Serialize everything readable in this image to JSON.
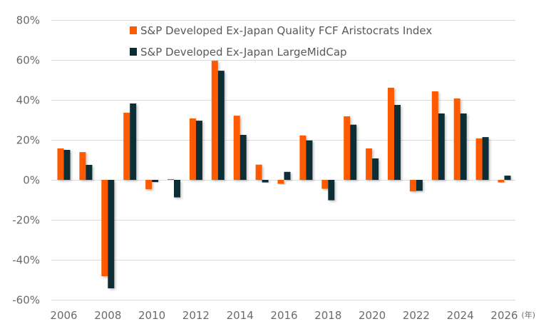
{
  "chart_data": {
    "type": "bar",
    "title": "",
    "xlabel": "",
    "ylabel": "",
    "x_unit_label": "(年)",
    "ylim": [
      -60,
      80
    ],
    "yticks": [
      80,
      60,
      40,
      20,
      0,
      -20,
      -40,
      -60
    ],
    "ytick_labels": [
      "80%",
      "60%",
      "40%",
      "20%",
      "0%",
      "-20%",
      "-40%",
      "-60%"
    ],
    "grid": true,
    "legend_position": "top-center",
    "categories": [
      2006,
      2007,
      2008,
      2009,
      2010,
      2011,
      2012,
      2013,
      2014,
      2015,
      2016,
      2017,
      2018,
      2019,
      2020,
      2021,
      2022,
      2023,
      2024,
      2025,
      2026
    ],
    "xtick_labels": [
      "2006",
      "2008",
      "2010",
      "2012",
      "2014",
      "2016",
      "2018",
      "2020",
      "2022",
      "2024",
      "2026"
    ],
    "series": [
      {
        "name": "S&P Developed Ex-Japan Quality FCF Aristocrats Index",
        "color": "#FF5A00",
        "values": [
          15.7,
          13.9,
          -48.2,
          33.6,
          -4.7,
          0.4,
          30.7,
          59.6,
          32.1,
          7.6,
          -2.0,
          22.2,
          -4.5,
          31.8,
          15.7,
          46.1,
          -5.8,
          44.3,
          40.7,
          20.7,
          -1.3
        ]
      },
      {
        "name": "S&P Developed Ex-Japan LargeMidCap",
        "color": "#0C2D36",
        "values": [
          15.0,
          7.5,
          -54.3,
          38.2,
          -1.1,
          -8.8,
          29.6,
          54.6,
          22.5,
          -1.3,
          4.0,
          19.7,
          -10.2,
          27.6,
          10.7,
          37.5,
          -5.5,
          33.2,
          33.2,
          21.4,
          2.1
        ]
      }
    ]
  }
}
